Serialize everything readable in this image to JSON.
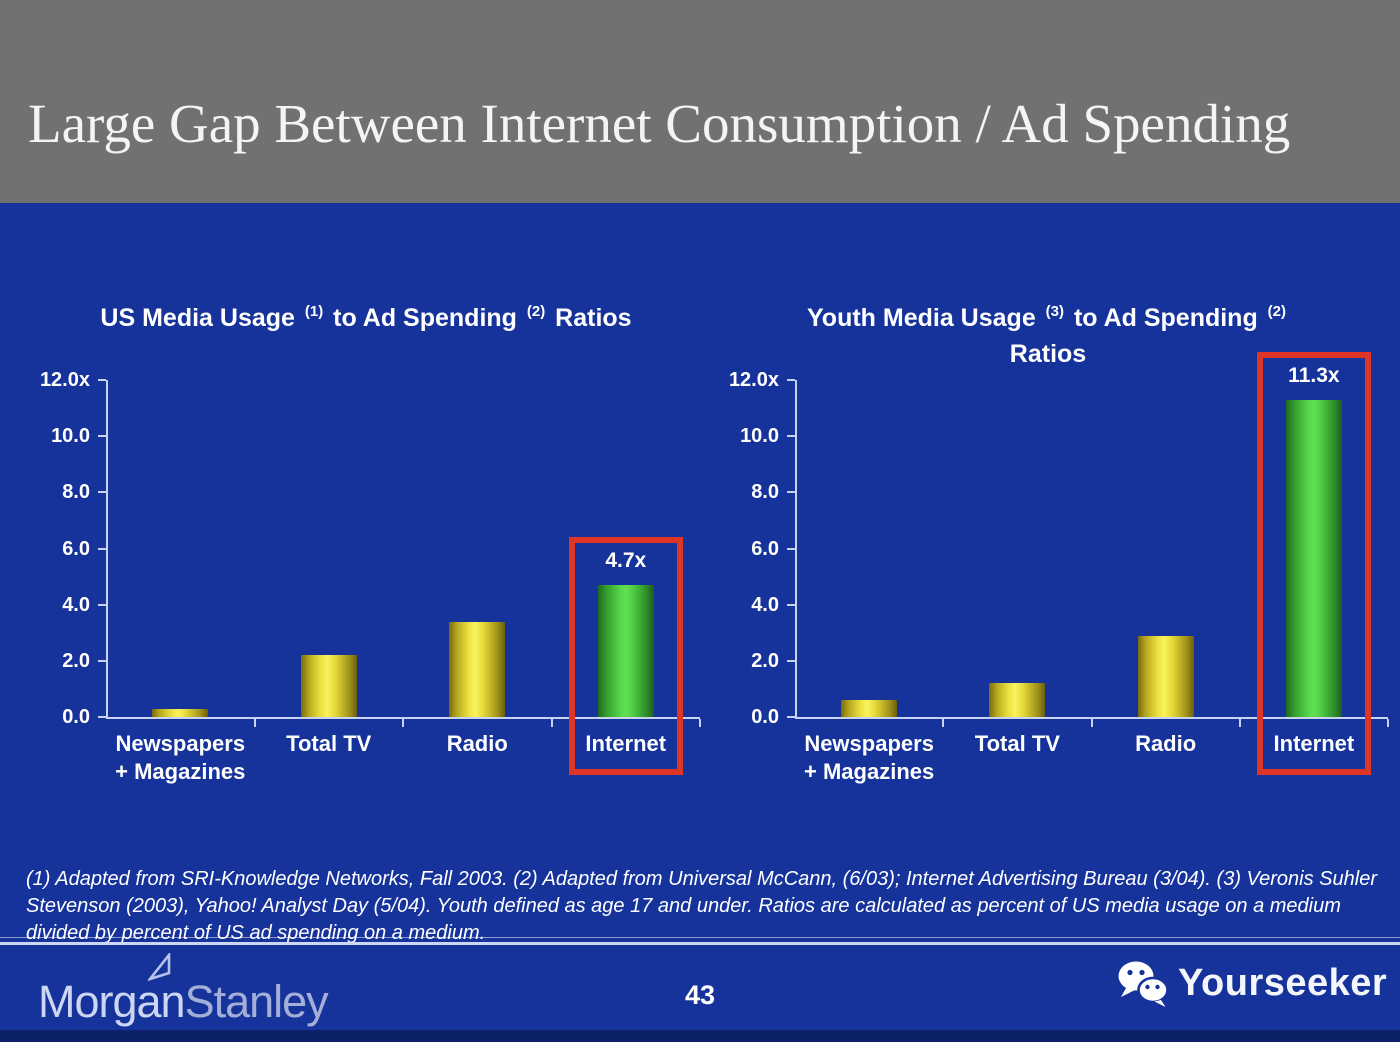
{
  "header": {
    "title": "Large Gap Between Internet Consumption / Ad Spending"
  },
  "footnote": {
    "text": "(1) Adapted from SRI-Knowledge Networks, Fall 2003.  (2) Adapted from Universal McCann, (6/03); Internet Advertising Bureau (3/04). (3) Veronis Suhler Stevenson (2003), Yahoo! Analyst Day (5/04).  Youth defined as age 17 and under.  Ratios are calculated as percent of US media usage on a medium divided by percent of US ad spending on a medium."
  },
  "footer": {
    "page_number": "43",
    "brand_left": {
      "part1": "Morgan",
      "part2": "Stanley",
      "mark": "triangle-angle-icon"
    },
    "brand_right": {
      "label": "Yourseeker",
      "mark": "wechat-icon"
    }
  },
  "colors": {
    "header_gray": "#717171",
    "slide_blue": "#16339c",
    "bottom_strip_blue": "#0d2168",
    "bar_yellow": "#f0e33c",
    "bar_green": "#4fd246",
    "highlight_red": "#df3527",
    "axis_light": "#c9d4f2",
    "text_white": "#ffffff",
    "morgan_text": "#ccd5f2",
    "stanley_text": "#a4afd7"
  },
  "chart_data": [
    {
      "type": "bar",
      "title_plain": "US Media Usage (1) to Ad Spending (2) Ratios",
      "title_segments": [
        {
          "text": "US Media Usage "
        },
        {
          "sup": "(1)"
        },
        {
          "text": " to Ad Spending "
        },
        {
          "sup": "(2)"
        },
        {
          "text": " Ratios"
        }
      ],
      "categories": [
        [
          "Newspapers",
          "+ Magazines"
        ],
        [
          "Total TV"
        ],
        [
          "Radio"
        ],
        [
          "Internet"
        ]
      ],
      "values": [
        0.3,
        2.2,
        3.4,
        4.7
      ],
      "bar_labels": [
        "",
        "",
        "",
        "4.7x"
      ],
      "bar_colors": [
        "yellow",
        "yellow",
        "yellow",
        "green"
      ],
      "highlight_index": 3,
      "ylim": [
        0,
        12
      ],
      "yticks": [
        {
          "value": 12,
          "label": "12.0x"
        },
        {
          "value": 10,
          "label": "10.0"
        },
        {
          "value": 8,
          "label": "8.0"
        },
        {
          "value": 6,
          "label": "6.0"
        },
        {
          "value": 4,
          "label": "4.0"
        },
        {
          "value": 2,
          "label": "2.0"
        },
        {
          "value": 0,
          "label": "0.0"
        }
      ],
      "grid": false,
      "legend": null
    },
    {
      "type": "bar",
      "title_plain": "Youth Media Usage (3) to Ad Spending (2) Ratios",
      "title_segments": [
        {
          "text": "Youth Media Usage "
        },
        {
          "sup": "(3)"
        },
        {
          "text": " to Ad Spending "
        },
        {
          "sup": "(2)"
        },
        {
          "br": true
        },
        {
          "text": "Ratios"
        }
      ],
      "categories": [
        [
          "Newspapers",
          "+ Magazines"
        ],
        [
          "Total TV"
        ],
        [
          "Radio"
        ],
        [
          "Internet"
        ]
      ],
      "values": [
        0.6,
        1.2,
        2.9,
        11.3
      ],
      "bar_labels": [
        "",
        "",
        "",
        "11.3x"
      ],
      "bar_colors": [
        "yellow",
        "yellow",
        "yellow",
        "green"
      ],
      "highlight_index": 3,
      "ylim": [
        0,
        12
      ],
      "yticks": [
        {
          "value": 12,
          "label": "12.0x"
        },
        {
          "value": 10,
          "label": "10.0"
        },
        {
          "value": 8,
          "label": "8.0"
        },
        {
          "value": 6,
          "label": "6.0"
        },
        {
          "value": 4,
          "label": "4.0"
        },
        {
          "value": 2,
          "label": "2.0"
        },
        {
          "value": 0,
          "label": "0.0"
        }
      ],
      "grid": false,
      "legend": null
    }
  ]
}
